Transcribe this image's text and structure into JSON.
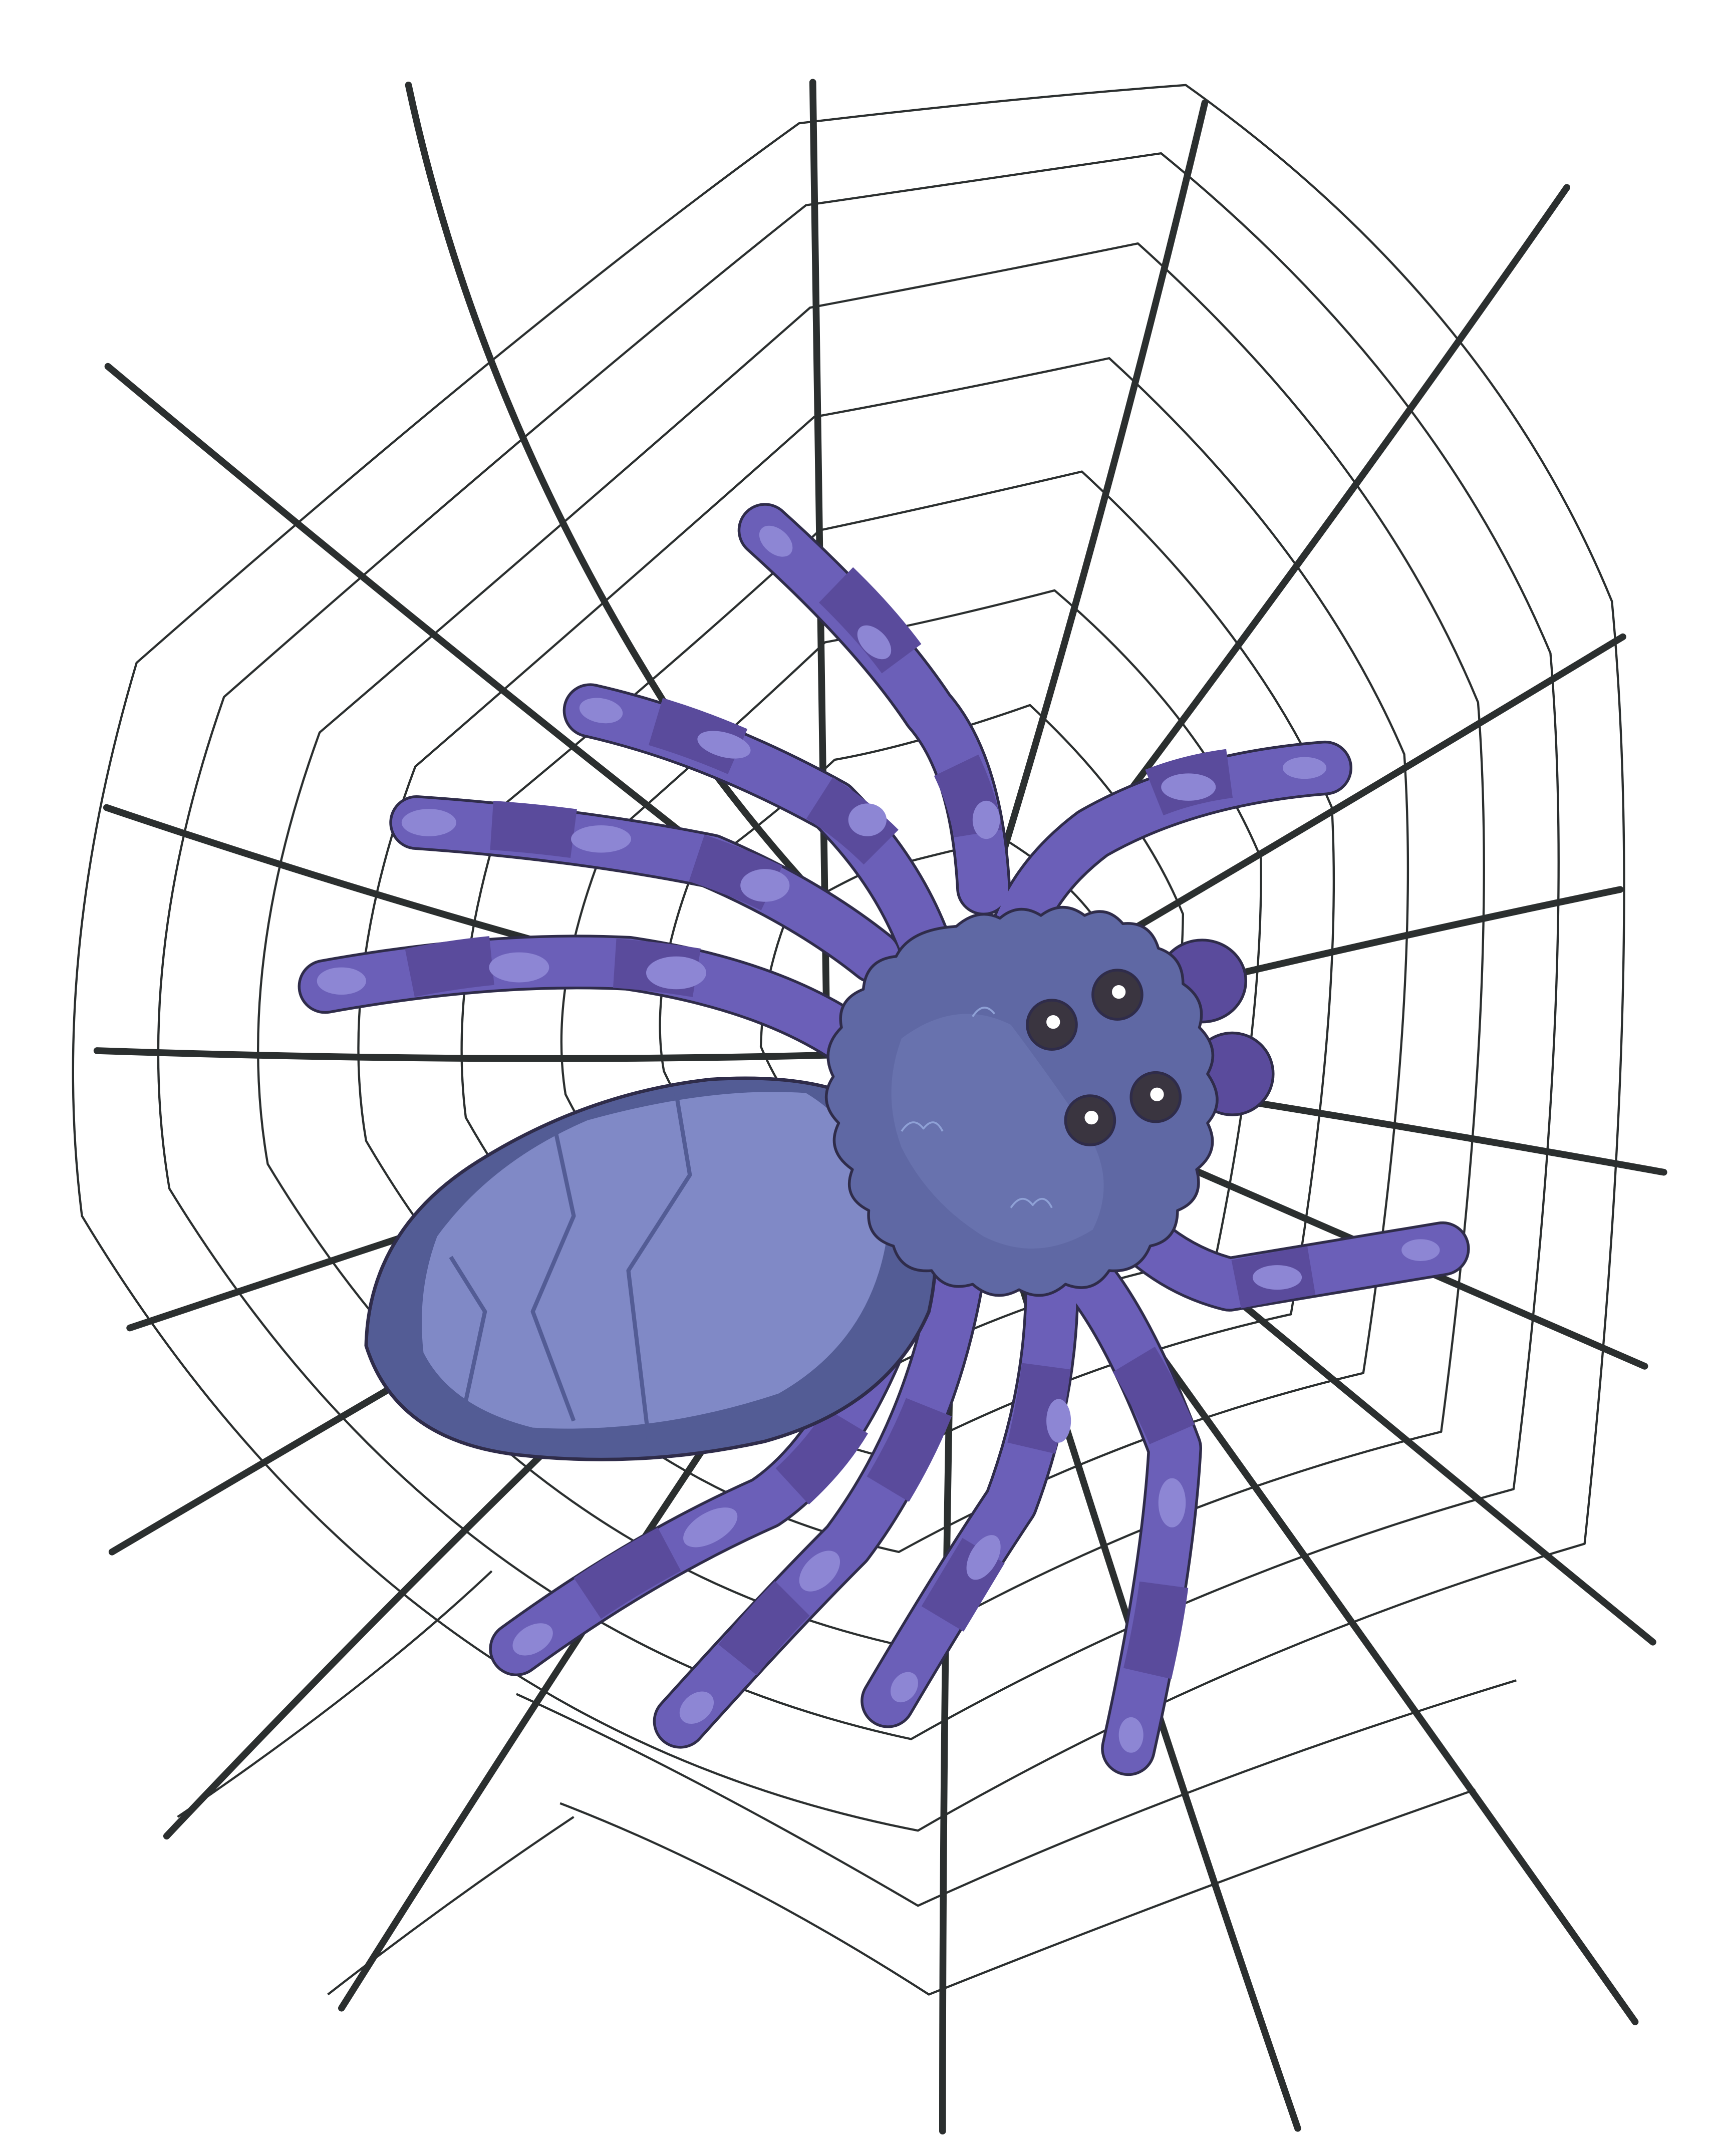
{
  "illustration": {
    "subject": "spider-on-web",
    "colors": {
      "background": "#ffffff",
      "web_thread": "#2b2f2f",
      "outline": "#2f2c4a",
      "leg_mid": "#6b5fb8",
      "leg_dark": "#5a4b9c",
      "leg_spot": "#8d86d4",
      "body_dark": "#535c95",
      "body_mid": "#6b74b1",
      "body_light": "#8089c6",
      "head_mid": "#5f68a4",
      "head_light": "#6872ae",
      "eye": "#3a3540",
      "eye_highlight": "#ffffff"
    },
    "icons": {
      "web": "spider-web-icon",
      "spider": "spider-icon"
    }
  }
}
